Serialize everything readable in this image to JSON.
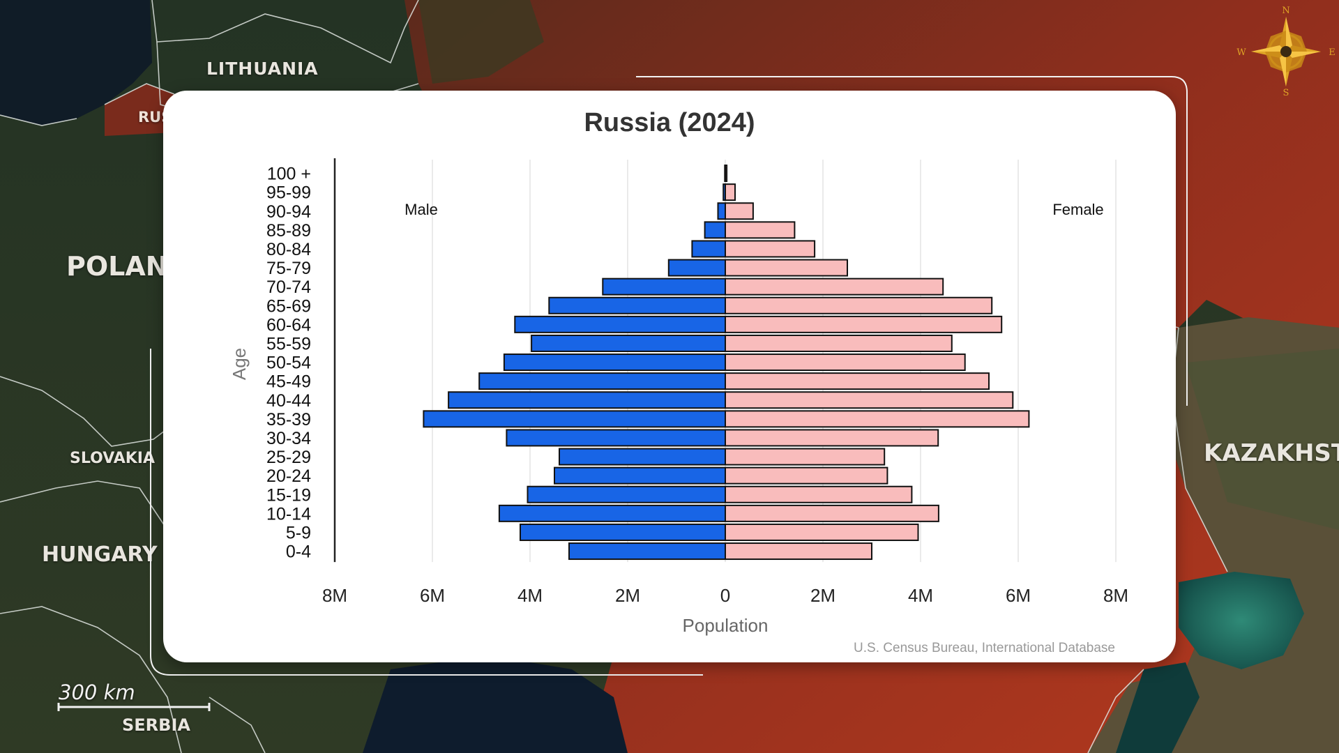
{
  "map": {
    "labels": {
      "lithuania": "LITHUANIA",
      "rus": "RUS",
      "poland": "POLAND",
      "slovakia": "SLOVAKIA",
      "hungary": "HUNGARY",
      "serbia": "SERBIA",
      "kazakhstan": "KAZAKHSTAN"
    },
    "scale_label": "300 km",
    "compass": {
      "n": "N",
      "s": "S",
      "e": "E",
      "w": "W"
    },
    "colors": {
      "russia_tint": "#a8321e",
      "compass_gold": "#e0a526"
    }
  },
  "chart_data": {
    "type": "bar",
    "title": "Russia (2024)",
    "xlabel": "Population",
    "ylabel": "Age",
    "source_note": "U.S. Census Bureau, International Database",
    "xlim": [
      -8000000,
      8000000
    ],
    "x_ticks": [
      -8000000,
      -6000000,
      -4000000,
      -2000000,
      0,
      2000000,
      4000000,
      6000000,
      8000000
    ],
    "x_tick_labels": [
      "8M",
      "6M",
      "4M",
      "2M",
      "0",
      "2M",
      "4M",
      "6M",
      "8M"
    ],
    "categories": [
      "0-4",
      "5-9",
      "10-14",
      "15-19",
      "20-24",
      "25-29",
      "30-34",
      "35-39",
      "40-44",
      "45-49",
      "50-54",
      "55-59",
      "60-64",
      "65-69",
      "70-74",
      "75-79",
      "80-84",
      "85-89",
      "90-94",
      "95-99",
      "100 +"
    ],
    "series": [
      {
        "name": "Male",
        "color": "#1865e6",
        "values": [
          3200000,
          4200000,
          4630000,
          4050000,
          3500000,
          3400000,
          4480000,
          6180000,
          5670000,
          5040000,
          4530000,
          3970000,
          4310000,
          3610000,
          2510000,
          1160000,
          680000,
          420000,
          150000,
          40000,
          10000
        ]
      },
      {
        "name": "Female",
        "color": "#f9bcbc",
        "values": [
          3000000,
          3950000,
          4370000,
          3820000,
          3320000,
          3260000,
          4360000,
          6220000,
          5890000,
          5400000,
          4910000,
          4640000,
          5660000,
          5460000,
          4460000,
          2500000,
          1830000,
          1420000,
          570000,
          200000,
          30000
        ]
      }
    ],
    "grid": true,
    "legend": "inline labels: Male top-left, Female top-right"
  }
}
